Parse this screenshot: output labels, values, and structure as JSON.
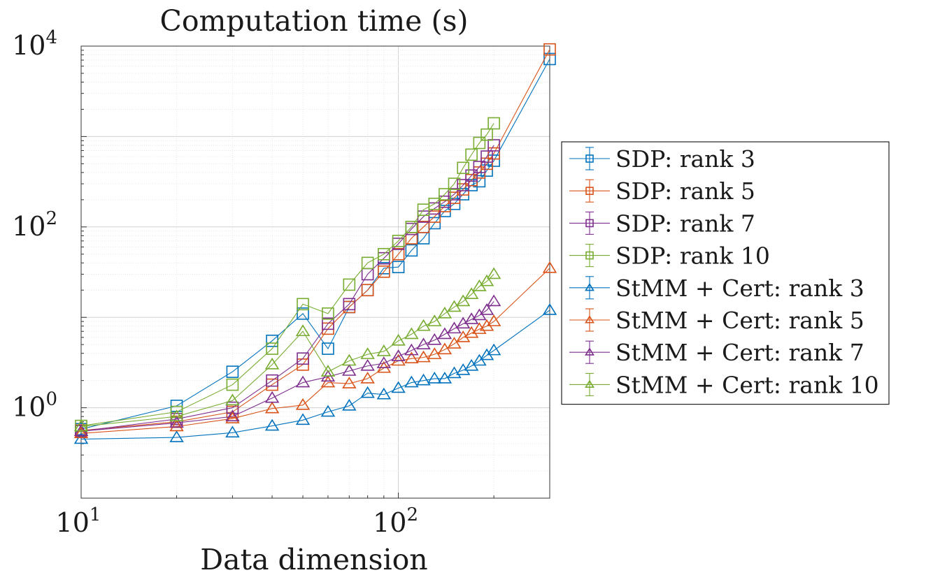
{
  "chart_data": {
    "type": "line",
    "title": "Computation time (s)",
    "xlabel": "Data dimension",
    "ylabel": "",
    "xscale": "log",
    "yscale": "log",
    "xlim": [
      10,
      300
    ],
    "ylim": [
      0.1,
      10000
    ],
    "x_ticks": [
      {
        "value": 10,
        "base": "10",
        "exp": "1"
      },
      {
        "value": 100,
        "base": "10",
        "exp": "2"
      }
    ],
    "y_ticks": [
      {
        "value": 1,
        "base": "10",
        "exp": "0"
      },
      {
        "value": 100,
        "base": "10",
        "exp": "2"
      },
      {
        "value": 10000,
        "base": "10",
        "exp": "4"
      }
    ],
    "grid": true,
    "legend_position": "right",
    "series": [
      {
        "name": "SDP: rank 3",
        "marker": "square",
        "color": "#0072BD",
        "x": [
          10,
          20,
          30,
          40,
          50,
          60,
          70,
          80,
          90,
          100,
          110,
          120,
          130,
          140,
          150,
          160,
          170,
          180,
          190,
          200,
          300
        ],
        "y": [
          0.58,
          1.05,
          2.5,
          5.5,
          11,
          4.5,
          13,
          20,
          35,
          36,
          55,
          75,
          110,
          150,
          180,
          230,
          290,
          320,
          420,
          540,
          7200
        ]
      },
      {
        "name": "SDP: rank 5",
        "marker": "square",
        "color": "#D95319",
        "x": [
          10,
          20,
          30,
          40,
          50,
          60,
          70,
          80,
          90,
          100,
          110,
          120,
          130,
          140,
          150,
          160,
          170,
          180,
          190,
          200,
          300
        ],
        "y": [
          0.56,
          0.7,
          0.9,
          1.8,
          3,
          7.5,
          13,
          20,
          32,
          50,
          75,
          100,
          130,
          170,
          210,
          260,
          330,
          400,
          500,
          650,
          9200
        ]
      },
      {
        "name": "SDP: rank 7",
        "marker": "square",
        "color": "#7E2F8E",
        "x": [
          10,
          20,
          30,
          40,
          50,
          60,
          70,
          80,
          90,
          100,
          110,
          120,
          130,
          140,
          150,
          160,
          170,
          180,
          190,
          200
        ],
        "y": [
          0.55,
          0.75,
          1.0,
          2.0,
          3.5,
          8.5,
          14,
          30,
          45,
          65,
          95,
          130,
          160,
          190,
          230,
          290,
          370,
          460,
          600,
          800
        ]
      },
      {
        "name": "SDP: rank 10",
        "marker": "square",
        "color": "#77AC30",
        "x": [
          10,
          20,
          30,
          40,
          50,
          60,
          70,
          80,
          90,
          100,
          110,
          120,
          130,
          140,
          150,
          160,
          170,
          180,
          190,
          200
        ],
        "y": [
          0.63,
          0.9,
          1.8,
          4.5,
          14,
          11,
          23,
          40,
          50,
          70,
          100,
          155,
          180,
          230,
          300,
          450,
          630,
          850,
          1050,
          1400
        ]
      },
      {
        "name": "StMM + Cert: rank 3",
        "marker": "triangle",
        "color": "#0072BD",
        "x": [
          10,
          20,
          30,
          40,
          50,
          60,
          70,
          80,
          90,
          100,
          110,
          120,
          130,
          140,
          150,
          160,
          170,
          180,
          190,
          200,
          300
        ],
        "y": [
          0.45,
          0.47,
          0.53,
          0.63,
          0.73,
          0.9,
          1.05,
          1.45,
          1.4,
          1.65,
          1.9,
          2.0,
          2.1,
          2.1,
          2.4,
          2.6,
          2.9,
          3.3,
          3.8,
          4.3,
          12
        ]
      },
      {
        "name": "StMM + Cert: rank 5",
        "marker": "triangle",
        "color": "#D95319",
        "x": [
          10,
          20,
          30,
          40,
          50,
          60,
          70,
          80,
          90,
          100,
          110,
          120,
          130,
          140,
          150,
          160,
          170,
          180,
          190,
          200,
          300
        ],
        "y": [
          0.52,
          0.62,
          0.76,
          0.98,
          1.07,
          1.9,
          1.85,
          2.1,
          2.75,
          3.3,
          3.5,
          3.6,
          3.9,
          4.4,
          5.1,
          6.0,
          6.7,
          7.4,
          8.0,
          9.0,
          35
        ]
      },
      {
        "name": "StMM + Cert: rank 7",
        "marker": "triangle",
        "color": "#7E2F8E",
        "x": [
          10,
          20,
          30,
          40,
          50,
          60,
          70,
          80,
          90,
          100,
          110,
          120,
          130,
          140,
          150,
          160,
          170,
          180,
          190,
          200
        ],
        "y": [
          0.55,
          0.68,
          0.8,
          1.28,
          1.9,
          2.2,
          2.55,
          2.9,
          3.1,
          3.7,
          4.3,
          5.0,
          5.6,
          6.5,
          7.5,
          8.5,
          9.5,
          10.5,
          12,
          15
        ]
      },
      {
        "name": "StMM + Cert: rank 10",
        "marker": "triangle",
        "color": "#77AC30",
        "x": [
          10,
          20,
          30,
          40,
          50,
          60,
          70,
          80,
          90,
          100,
          110,
          120,
          130,
          140,
          150,
          160,
          170,
          180,
          190,
          200
        ],
        "y": [
          0.62,
          0.8,
          1.2,
          3.0,
          7.0,
          2.5,
          3.3,
          3.9,
          4.2,
          5.5,
          6.5,
          8.0,
          9.0,
          11,
          13,
          15,
          18,
          22,
          25,
          30
        ]
      }
    ]
  }
}
